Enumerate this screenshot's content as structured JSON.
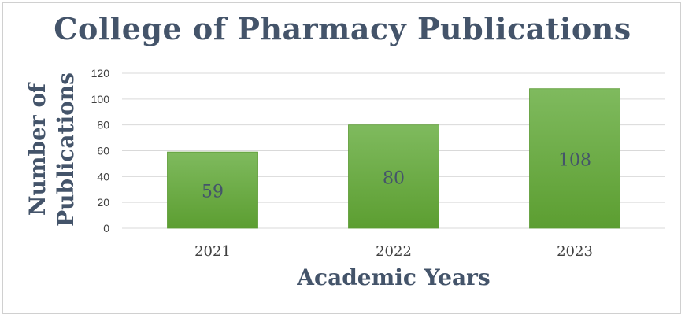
{
  "chart_data": {
    "type": "bar",
    "title": "College of Pharmacy Publications",
    "xlabel": "Academic Years",
    "ylabel_lines": [
      "Number of",
      "Publications"
    ],
    "categories": [
      "2021",
      "2022",
      "2023"
    ],
    "values": [
      59,
      80,
      108
    ],
    "data_labels": [
      "59",
      "80",
      "108"
    ],
    "ylim": [
      0,
      120
    ],
    "yticks": [
      "0",
      "20",
      "40",
      "60",
      "80",
      "100",
      "120"
    ],
    "grid": true,
    "legend": "none",
    "colors": {
      "bar_top": "#7fba5e",
      "bar_bottom": "#5c9e31",
      "bar_border": "#5a9a32",
      "text": "#44546a",
      "grid": "#d9d9d9"
    }
  }
}
